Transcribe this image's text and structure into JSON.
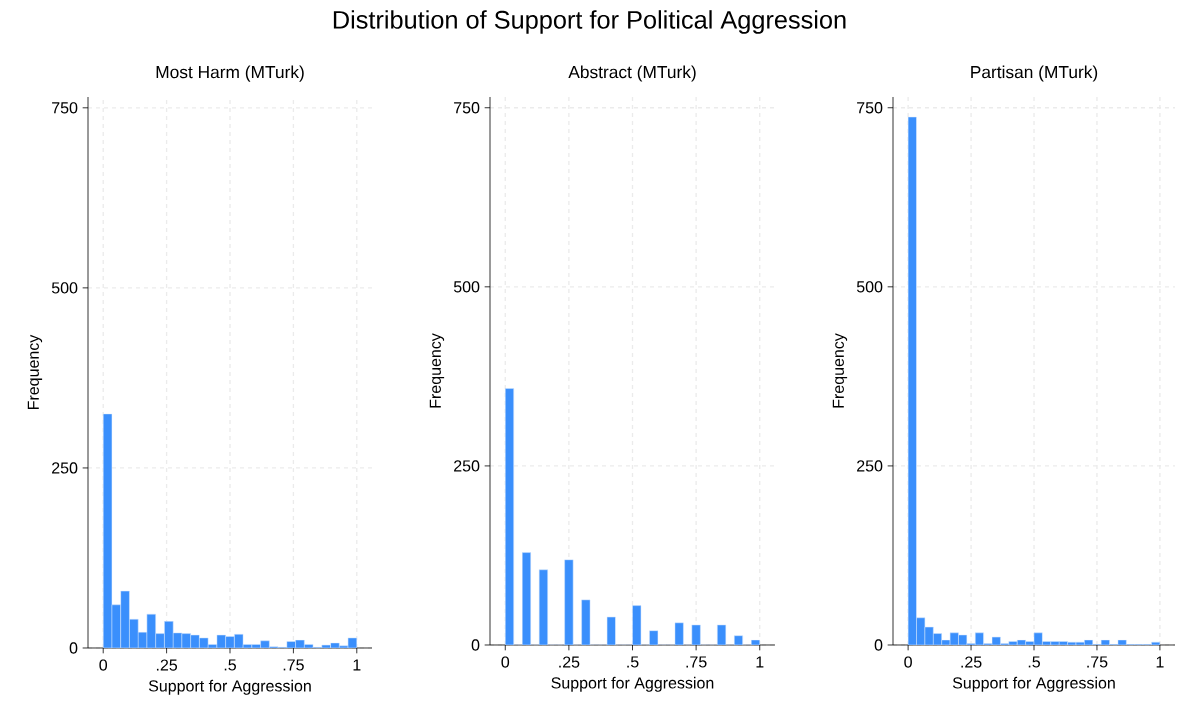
{
  "chart_data": [
    {
      "type": "histogram",
      "title": "Most Harm (MTurk)",
      "xlabel": "Support for Aggression",
      "ylabel": "Frequency",
      "color": "#3a8ffc",
      "grid": true,
      "annotations": [
        "Distribution of Support for Political Aggression"
      ],
      "bins": [
        0,
        0.0345,
        0.069,
        0.1034,
        0.1379,
        0.1724,
        0.2069,
        0.2414,
        0.2759,
        0.3103,
        0.3448,
        0.3793,
        0.4138,
        0.4483,
        0.4828,
        0.5172,
        0.5517,
        0.5862,
        0.6207,
        0.6552,
        0.6897,
        0.7241,
        0.7586,
        0.7931,
        0.8276,
        0.8621,
        0.8966,
        0.931,
        0.9655,
        1
      ],
      "values": [
        325,
        60,
        79,
        40,
        22,
        47,
        20,
        37,
        21,
        20,
        18,
        14,
        5,
        18,
        16,
        19,
        5,
        5,
        10,
        2,
        1,
        9,
        11,
        5,
        1,
        4,
        7,
        3,
        14
      ],
      "xlim": [
        -0.06,
        1.06
      ],
      "ylim": [
        0,
        765
      ],
      "xticks": [
        0,
        {
          "value": 0.25,
          "label": ".25"
        },
        {
          "value": 0.5,
          "label": ".5"
        },
        {
          "value": 0.75,
          "label": ".75"
        },
        1
      ],
      "yticks": [
        0,
        250,
        500,
        750
      ]
    },
    {
      "type": "histogram",
      "title": "Abstract (MTurk)",
      "xlabel": "Support for Aggression",
      "ylabel": "Frequency",
      "color": "#3a8ffc",
      "grid": true,
      "bins": [
        0,
        0.0333,
        0.0667,
        0.1,
        0.1333,
        0.1667,
        0.2,
        0.2333,
        0.2667,
        0.3,
        0.3333,
        0.3667,
        0.4,
        0.4333,
        0.4667,
        0.5,
        0.5333,
        0.5667,
        0.6,
        0.6333,
        0.6667,
        0.7,
        0.7333,
        0.7667,
        0.8,
        0.8333,
        0.8667,
        0.9,
        0.9333,
        0.9667,
        1
      ],
      "values": [
        358,
        0,
        129,
        0,
        105,
        0,
        0,
        119,
        0,
        63,
        0,
        0,
        39,
        0,
        0,
        55,
        0,
        20,
        0,
        0,
        31,
        0,
        28,
        0,
        0,
        28,
        0,
        13,
        0,
        7
      ],
      "xlim": [
        -0.06,
        1.06
      ],
      "ylim": [
        0,
        765
      ],
      "xticks": [
        0,
        {
          "value": 0.25,
          "label": ".25"
        },
        {
          "value": 0.5,
          "label": ".5"
        },
        {
          "value": 0.75,
          "label": ".75"
        },
        1
      ],
      "yticks": [
        0,
        250,
        500,
        750
      ]
    },
    {
      "type": "histogram",
      "title": "Partisan (MTurk)",
      "xlabel": "Support for Aggression",
      "ylabel": "Frequency",
      "color": "#3a8ffc",
      "grid": true,
      "bins": [
        0,
        0.0333,
        0.0667,
        0.1,
        0.1333,
        0.1667,
        0.2,
        0.2333,
        0.2667,
        0.3,
        0.3333,
        0.3667,
        0.4,
        0.4333,
        0.4667,
        0.5,
        0.5333,
        0.5667,
        0.6,
        0.6333,
        0.6667,
        0.7,
        0.7333,
        0.7667,
        0.8,
        0.8333,
        0.8667,
        0.9,
        0.9333,
        0.9667,
        1
      ],
      "values": [
        737,
        38,
        25,
        16,
        7,
        17,
        14,
        2,
        17,
        2,
        11,
        2,
        5,
        7,
        5,
        17,
        5,
        5,
        5,
        4,
        4,
        7,
        1,
        7,
        1,
        7,
        1,
        1,
        1,
        4
      ],
      "xlim": [
        -0.06,
        1.06
      ],
      "ylim": [
        0,
        765
      ],
      "xticks": [
        0,
        {
          "value": 0.25,
          "label": ".25"
        },
        {
          "value": 0.5,
          "label": ".5"
        },
        {
          "value": 0.75,
          "label": ".75"
        },
        1
      ],
      "yticks": [
        0,
        250,
        500,
        750
      ]
    }
  ]
}
